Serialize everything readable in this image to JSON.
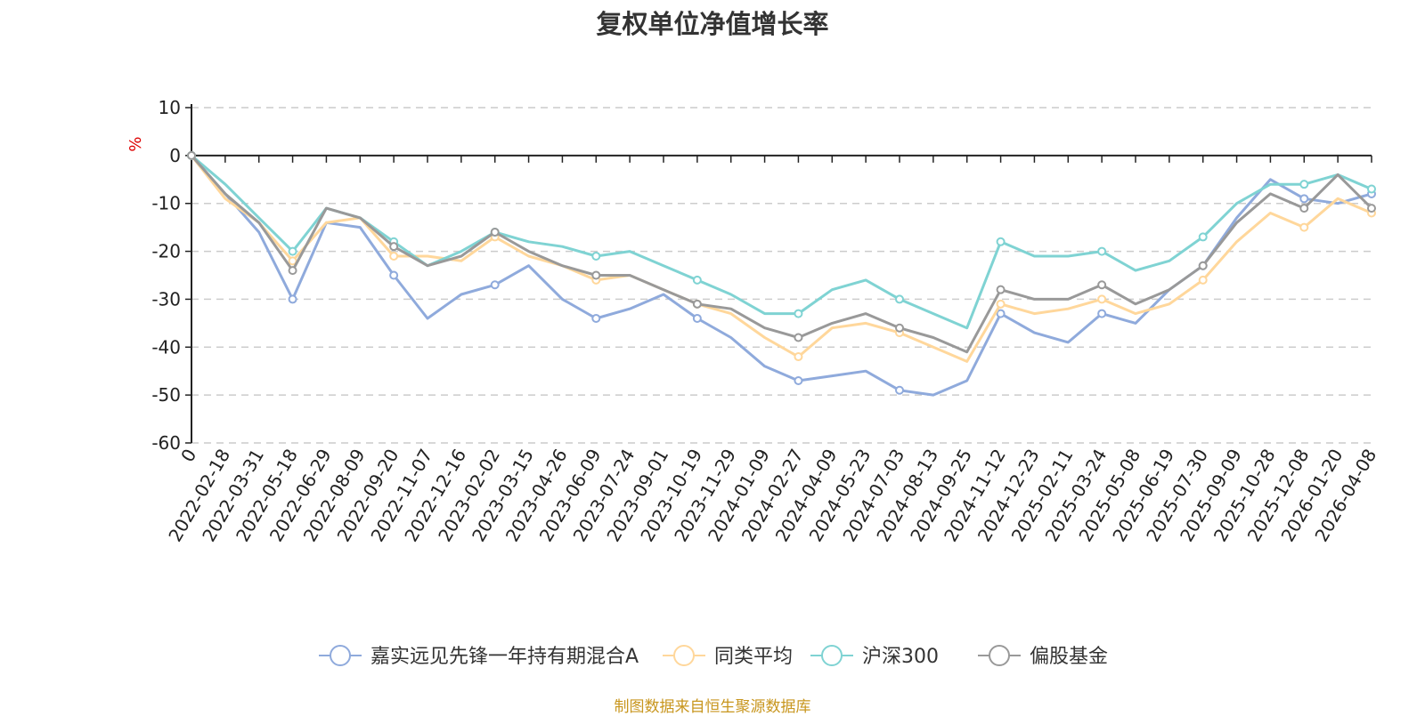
{
  "title": "复权单位净值增长率",
  "unit_label": "%",
  "source": "制图数据来自恒生聚源数据库",
  "chart_data": {
    "type": "line",
    "title": "复权单位净值增长率",
    "ylabel": "%",
    "ylim": [
      -60,
      10
    ],
    "yticks": [
      10,
      0,
      -10,
      -20,
      -30,
      -40,
      -50,
      -60
    ],
    "grid": "horizontal dashed",
    "legend_position": "bottom",
    "x": [
      "0",
      "2022-02-18",
      "2022-03-31",
      "2022-05-18",
      "2022-06-29",
      "2022-08-09",
      "2022-09-20",
      "2022-11-07",
      "2022-12-16",
      "2023-02-02",
      "2023-03-15",
      "2023-04-26",
      "2023-06-09",
      "2023-07-24",
      "2023-09-01",
      "2023-10-19",
      "2023-11-29",
      "2024-01-09",
      "2024-02-27",
      "2024-04-09",
      "2024-05-23",
      "2024-07-03",
      "2024-08-13",
      "2024-09-25",
      "2024-11-12",
      "2024-12-23",
      "2025-02-11",
      "2025-03-24",
      "2025-05-08",
      "2025-06-19",
      "2025-07-30",
      "2025-09-09",
      "2025-10-28",
      "2025-12-08",
      "2026-01-20",
      "2026-04-08"
    ],
    "series": [
      {
        "name": "嘉实远见先锋一年持有期混合A",
        "color": "#8faadc",
        "values": [
          0,
          -8,
          -16,
          -30,
          -14,
          -15,
          -25,
          -34,
          -29,
          -27,
          -23,
          -30,
          -34,
          -32,
          -29,
          -34,
          -38,
          -44,
          -47,
          -46,
          -45,
          -49,
          -50,
          -47,
          -33,
          -37,
          -39,
          -33,
          -35,
          -28,
          -23,
          -13,
          -5,
          -9,
          -10,
          -8
        ]
      },
      {
        "name": "同类平均",
        "color": "#ffd79b",
        "values": [
          0,
          -9,
          -14,
          -22,
          -14,
          -13,
          -21,
          -21,
          -22,
          -17,
          -21,
          -23,
          -26,
          -25,
          -28,
          -31,
          -33,
          -38,
          -42,
          -36,
          -35,
          -37,
          -40,
          -43,
          -31,
          -33,
          -32,
          -30,
          -33,
          -31,
          -26,
          -18,
          -12,
          -15,
          -9,
          -12
        ]
      },
      {
        "name": "沪深300",
        "color": "#7fd3d3",
        "values": [
          0,
          -6,
          -13,
          -20,
          -11,
          -13,
          -18,
          -23,
          -20,
          -16,
          -18,
          -19,
          -21,
          -20,
          -23,
          -26,
          -29,
          -33,
          -33,
          -28,
          -26,
          -30,
          -33,
          -36,
          -18,
          -21,
          -21,
          -20,
          -24,
          -22,
          -17,
          -10,
          -6,
          -6,
          -4,
          -7
        ]
      },
      {
        "name": "偏股基金",
        "color": "#999999",
        "values": [
          0,
          -8,
          -14,
          -24,
          -11,
          -13,
          -19,
          -23,
          -21,
          -16,
          -20,
          -23,
          -25,
          -25,
          -28,
          -31,
          -32,
          -36,
          -38,
          -35,
          -33,
          -36,
          -38,
          -41,
          -28,
          -30,
          -30,
          -27,
          -31,
          -28,
          -23,
          -14,
          -8,
          -11,
          -4,
          -11
        ]
      }
    ]
  },
  "legend": {
    "items": [
      {
        "label": "嘉实远见先锋一年持有期混合A"
      },
      {
        "label": "同类平均"
      },
      {
        "label": "沪深300"
      },
      {
        "label": "偏股基金"
      }
    ]
  }
}
